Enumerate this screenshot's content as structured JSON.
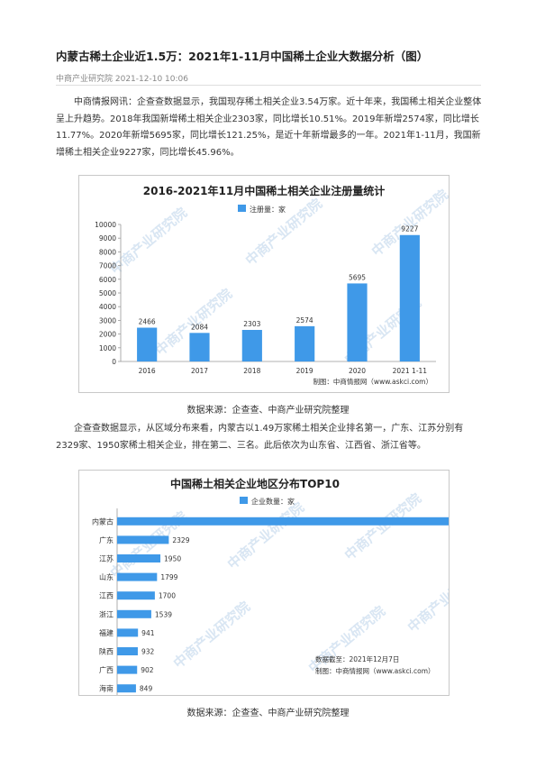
{
  "article": {
    "title": "内蒙古稀土企业近1.5万：2021年1-11月中国稀土企业大数据分析（图）",
    "meta": "中商产业研究院 2021-12-10 10:06",
    "para1": "中商情报网讯：企查查数据显示，我国现存稀土相关企业3.54万家。近十年来，我国稀土相关企业整体呈上升趋势。2018年我国新增稀土相关企业2303家，同比增长10.51%。2019年新增2574家，同比增长11.77%。2020年新增5695家，同比增长121.25%，是近十年新增最多的一年。2021年1-11月，我国新增稀土相关企业9227家，同比增长45.96%。",
    "caption1": "数据来源：企查查、中商产业研究院整理",
    "para2": "企查查数据显示，从区域分布来看，内蒙古以1.49万家稀土相关企业排名第一，广东、江苏分别有2329家、1950家稀土相关企业，排在第二、三名。此后依次为山东省、江西省、浙江省等。",
    "caption2": "数据来源：企查查、中商产业研究院整理"
  },
  "chart_data": [
    {
      "type": "bar",
      "title": "2016-2021年11月中国稀土相关企业注册量统计",
      "legend": "注册量：家",
      "legend_position": "top",
      "categories": [
        "2016",
        "2017",
        "2018",
        "2019",
        "2020",
        "2021 1-11"
      ],
      "values": [
        2466,
        2084,
        2303,
        2574,
        5695,
        9227
      ],
      "ylim": [
        0,
        10000
      ],
      "yticks": [
        "0",
        "1000",
        "2000",
        "3000",
        "4000",
        "5000",
        "6000",
        "7000",
        "8000",
        "9000",
        "10000"
      ],
      "grid": false,
      "color": "#3f99e8",
      "source_note": "制图：中商情报网（www.askci.com）"
    },
    {
      "type": "bar",
      "orientation": "horizontal",
      "title": "中国稀土相关企业地区分布TOP10",
      "legend": "企业数量：家",
      "legend_position": "top",
      "categories": [
        "内蒙古",
        "广东",
        "江苏",
        "山东",
        "江西",
        "浙江",
        "福建",
        "陕西",
        "广西",
        "海南"
      ],
      "values": [
        14937,
        2329,
        1950,
        1799,
        1700,
        1539,
        941,
        932,
        902,
        849
      ],
      "color": "#3f99e8",
      "note_date": "数据截至：2021年12月7日",
      "source_note": "制图：中商情报网（www.askci.com）"
    }
  ],
  "watermark": "中商产业研究院"
}
